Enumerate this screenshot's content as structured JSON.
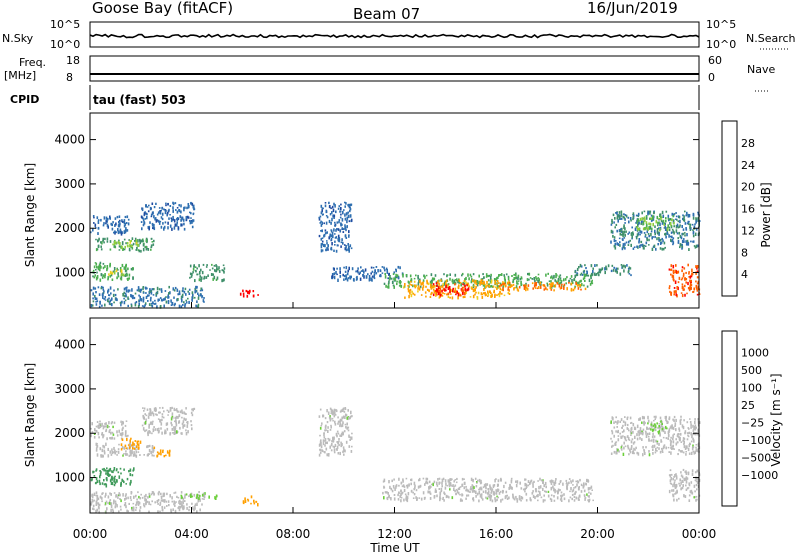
{
  "header": {
    "station": "Goose Bay (fitACF)",
    "beam": "Beam 07",
    "date": "16/Jun/2019"
  },
  "nsky_panel": {
    "left_label": "N.Sky",
    "left_ticks": [
      "10^5",
      "10^0"
    ],
    "right_ticks": [
      "10^5",
      "10^0"
    ],
    "right_label": "N.Search"
  },
  "freq_panel": {
    "left_label_1": "Freq.",
    "left_label_2": "[MHz]",
    "left_ticks": [
      "18",
      "8"
    ],
    "right_ticks": [
      "60",
      "0"
    ],
    "right_label": "Nave"
  },
  "cpid": {
    "label": "CPID",
    "mode_text": "tau (fast) 503"
  },
  "colors": {
    "power_scale": [
      "#1e1eff",
      "#1e4aa0",
      "#2e6fb0",
      "#3f8f6a",
      "#4caf50",
      "#8fce3c",
      "#f0d020",
      "#ffa000",
      "#ff6000",
      "#ff0000"
    ],
    "velocity_scale": [
      "#ff0000",
      "#ff6000",
      "#ffa000",
      "#f0c030",
      "#bbbbbb",
      "#bbbbbb",
      "#6ccf3a",
      "#3f9a5a",
      "#2e6fb0",
      "#1e3ab0"
    ]
  },
  "chart_data": [
    {
      "type": "heatmap",
      "name": "power",
      "ylabel": "Slant Range [km]",
      "y_ticks": [
        "1000",
        "2000",
        "3000",
        "4000"
      ],
      "ylim": [
        200,
        4600
      ],
      "colorbar_label": "Power [dB]",
      "colorbar_ticks": [
        "4",
        "8",
        "12",
        "16",
        "20",
        "24",
        "28"
      ],
      "clim": [
        0,
        32
      ],
      "regions": [
        {
          "t0": 0.0,
          "t1": 1.5,
          "r0": 1900,
          "r1": 2300,
          "v": 6
        },
        {
          "t0": 0.2,
          "t1": 2.5,
          "r0": 1500,
          "r1": 1800,
          "v": 10
        },
        {
          "t0": 0.8,
          "t1": 2.0,
          "r0": 1600,
          "r1": 1750,
          "v": 16
        },
        {
          "t0": 2.0,
          "t1": 4.1,
          "r0": 2000,
          "r1": 2600,
          "v": 6
        },
        {
          "t0": 0.0,
          "t1": 1.7,
          "r0": 850,
          "r1": 1250,
          "v": 12
        },
        {
          "t0": 0.7,
          "t1": 1.3,
          "r0": 950,
          "r1": 1100,
          "v": 17
        },
        {
          "t0": 0.0,
          "t1": 4.5,
          "r0": 250,
          "r1": 700,
          "v": 7
        },
        {
          "t0": 3.9,
          "t1": 5.3,
          "r0": 850,
          "r1": 1200,
          "v": 10
        },
        {
          "t0": 5.8,
          "t1": 6.6,
          "r0": 480,
          "r1": 620,
          "v": 29
        },
        {
          "t0": 9.0,
          "t1": 10.3,
          "r0": 1500,
          "r1": 2600,
          "v": 6
        },
        {
          "t0": 9.5,
          "t1": 12.3,
          "r0": 850,
          "r1": 1150,
          "v": 6
        },
        {
          "t0": 11.5,
          "t1": 19.8,
          "r0": 700,
          "r1": 1000,
          "v": 12
        },
        {
          "t0": 12.3,
          "t1": 16.5,
          "r0": 450,
          "r1": 850,
          "v": 22
        },
        {
          "t0": 13.5,
          "t1": 15.0,
          "r0": 500,
          "r1": 780,
          "v": 28
        },
        {
          "t0": 16.0,
          "t1": 19.5,
          "r0": 620,
          "r1": 800,
          "v": 24
        },
        {
          "t0": 19.0,
          "t1": 21.3,
          "r0": 950,
          "r1": 1200,
          "v": 9
        },
        {
          "t0": 20.5,
          "t1": 24.0,
          "r0": 1550,
          "r1": 2400,
          "v": 8
        },
        {
          "t0": 21.5,
          "t1": 23.0,
          "r0": 2000,
          "r1": 2300,
          "v": 14
        },
        {
          "t0": 22.8,
          "t1": 24.0,
          "r0": 500,
          "r1": 1200,
          "v": 26
        }
      ]
    },
    {
      "type": "heatmap",
      "name": "velocity",
      "ylabel": "Slant Range [km]",
      "y_ticks": [
        "1000",
        "2000",
        "3000",
        "4000"
      ],
      "ylim": [
        200,
        4600
      ],
      "xlabel": "Time UT",
      "x_ticks": [
        "00:00",
        "04:00",
        "08:00",
        "12:00",
        "16:00",
        "20:00",
        "00:00"
      ],
      "xlim": [
        0,
        24
      ],
      "colorbar_label": "Velocity [m s⁻¹]",
      "colorbar_ticks": [
        "1000",
        "500",
        "100",
        "25",
        "−25",
        "−100",
        "−500",
        "−1000"
      ],
      "regions": [
        {
          "t0": 0.0,
          "t1": 1.5,
          "r0": 1900,
          "r1": 2300,
          "v": 0
        },
        {
          "t0": 0.2,
          "t1": 2.5,
          "r0": 1500,
          "r1": 1800,
          "v": 0
        },
        {
          "t0": 1.2,
          "t1": 2.0,
          "r0": 1650,
          "r1": 1900,
          "v": -150
        },
        {
          "t0": 2.0,
          "t1": 4.1,
          "r0": 2000,
          "r1": 2600,
          "v": 0
        },
        {
          "t0": 0.0,
          "t1": 1.7,
          "r0": 850,
          "r1": 1250,
          "v": 250
        },
        {
          "t0": 0.0,
          "t1": 4.5,
          "r0": 250,
          "r1": 700,
          "v": 0
        },
        {
          "t0": 2.5,
          "t1": 3.2,
          "r0": 1500,
          "r1": 1700,
          "v": -150
        },
        {
          "t0": 3.5,
          "t1": 5.0,
          "r0": 550,
          "r1": 650,
          "v": 60
        },
        {
          "t0": 6.0,
          "t1": 6.6,
          "r0": 420,
          "r1": 600,
          "v": -150
        },
        {
          "t0": 9.0,
          "t1": 10.3,
          "r0": 1500,
          "r1": 2600,
          "v": 0
        },
        {
          "t0": 11.5,
          "t1": 19.8,
          "r0": 500,
          "r1": 1000,
          "v": 0
        },
        {
          "t0": 20.5,
          "t1": 24.0,
          "r0": 1550,
          "r1": 2400,
          "v": 0
        },
        {
          "t0": 22.0,
          "t1": 22.7,
          "r0": 2050,
          "r1": 2250,
          "v": 60
        },
        {
          "t0": 22.8,
          "t1": 24.0,
          "r0": 500,
          "r1": 1200,
          "v": 0
        }
      ]
    }
  ]
}
